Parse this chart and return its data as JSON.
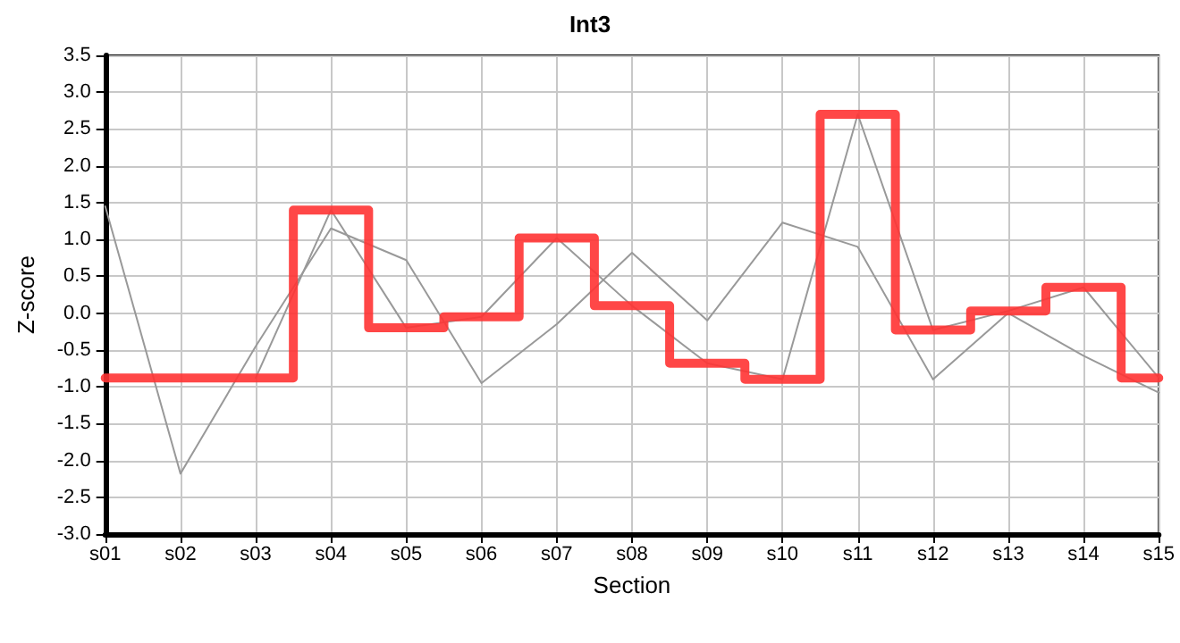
{
  "chart_data": {
    "type": "line",
    "title": "Int3",
    "xlabel": "Section",
    "ylabel": "Z-score",
    "categories": [
      "s01",
      "s02",
      "s03",
      "s04",
      "s05",
      "s06",
      "s07",
      "s08",
      "s09",
      "s10",
      "s11",
      "s12",
      "s13",
      "s14",
      "s15"
    ],
    "series": [
      {
        "color": "#999999",
        "values": [
          1.45,
          -2.18,
          -0.45,
          1.15,
          0.72,
          -0.95,
          -0.15,
          0.82,
          -0.1,
          1.23,
          0.9,
          -0.9,
          0.0,
          -0.58,
          -1.08
        ]
      },
      {
        "color": "#999999",
        "values": [
          null,
          null,
          -0.88,
          1.4,
          -0.2,
          -0.05,
          1.02,
          0.1,
          -0.68,
          -0.9,
          2.7,
          -0.23,
          0.03,
          0.35,
          -0.88
        ]
      },
      {
        "type": "step",
        "color": "#ff3333",
        "values": [
          -0.88,
          -0.88,
          -0.88,
          1.4,
          -0.2,
          -0.05,
          1.02,
          0.1,
          -0.68,
          -0.9,
          2.7,
          -0.23,
          0.03,
          0.35,
          -0.88
        ]
      }
    ],
    "ylim": [
      -3.0,
      3.5
    ],
    "yticks": [
      {
        "value": -3,
        "label": "-3.0"
      },
      {
        "value": -2.5,
        "label": "-2.5"
      },
      {
        "value": -2,
        "label": "-2.0"
      },
      {
        "value": -1.5,
        "label": "-1.5"
      },
      {
        "value": -1,
        "label": "-1.0"
      },
      {
        "value": -0.5,
        "label": "-0.5"
      },
      {
        "value": 0,
        "label": "0.0"
      },
      {
        "value": 0.5,
        "label": "0.5"
      },
      {
        "value": 1,
        "label": "1.0"
      },
      {
        "value": 1.5,
        "label": "1.5"
      },
      {
        "value": 2,
        "label": "2.0"
      },
      {
        "value": 2.5,
        "label": "2.5"
      },
      {
        "value": 3,
        "label": "3.0"
      },
      {
        "value": 3.5,
        "label": "3.5"
      }
    ],
    "grid": true,
    "marker": "none",
    "line_style": "solid"
  }
}
